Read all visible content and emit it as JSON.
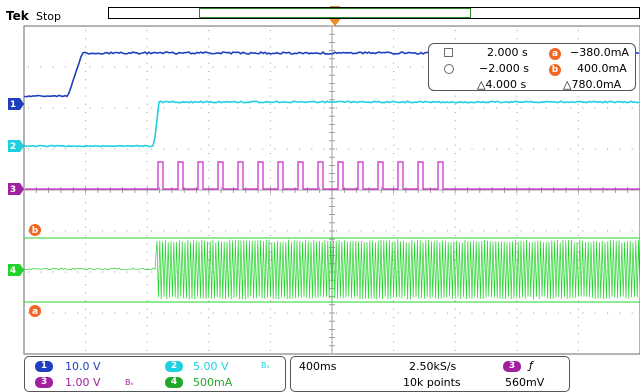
{
  "header": {
    "brand": "Tek",
    "state": "Stop",
    "trigger_marker": "T"
  },
  "cursor_readout": {
    "time1": "2.000 s",
    "time2": "−2.000 s",
    "time_delta": "△4.000 s",
    "a_value": "−380.0mA",
    "b_value": "400.0mA",
    "value_delta": "△780.0mA",
    "a_label": "a",
    "b_label": "b"
  },
  "channel_markers": {
    "ch1": "1",
    "ch2": "2",
    "ch3": "3",
    "ch4": "4",
    "cursor_a": "a",
    "cursor_b": "b"
  },
  "status": {
    "ch1": {
      "num": "1",
      "scale": "10.0 V"
    },
    "ch2": {
      "num": "2",
      "scale": "5.00 V",
      "bw": "Bᵥ"
    },
    "ch3": {
      "num": "3",
      "scale": "1.00 V",
      "bw": "Bᵥ"
    },
    "ch4": {
      "num": "4",
      "scale": "500mA"
    },
    "timebase": "400ms",
    "sample_rate": "2.50kS/s",
    "record_length": "10k points",
    "trigger_source": "3",
    "trigger_slope": "ƒ",
    "trigger_level": "560mV"
  },
  "colors": {
    "ch1": "#1f3fbf",
    "ch2": "#1fd0e0",
    "ch3": "#a020a0",
    "ch4": "#22d42a",
    "cursor": "#f26522",
    "grid": "#bdbdbd"
  }
}
